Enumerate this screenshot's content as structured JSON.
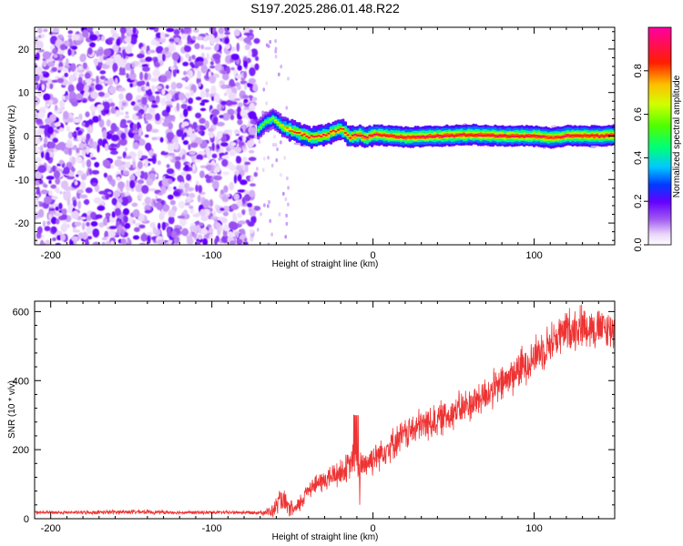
{
  "title": "S197.2025.286.01.48.R22",
  "chart_data": [
    {
      "type": "heatmap",
      "xlabel": "Height of straight line (km)",
      "ylabel": "Frequency (Hz)",
      "xlim": [
        -210,
        150
      ],
      "ylim": [
        -25,
        25
      ],
      "xticks": [
        -200,
        -100,
        0,
        100
      ],
      "yticks": [
        -20,
        -10,
        0,
        10,
        20
      ],
      "colorbar": {
        "label": "Normalized spectral amplitude",
        "range": [
          0,
          1
        ],
        "ticks": [
          "0.0",
          "0.2",
          "0.4",
          "0.6",
          "0.8"
        ],
        "tick_values": [
          0.0,
          0.2,
          0.4,
          0.6,
          0.8
        ]
      },
      "noise_region": {
        "x_from": -210,
        "x_to": -72,
        "max_amplitude": 0.2
      },
      "ridge": {
        "x": [
          -72,
          -68,
          -63,
          -58,
          -53,
          -48,
          -40,
          -30,
          -24,
          -20,
          -15,
          -10,
          -5,
          0,
          10,
          20,
          40,
          60,
          80,
          100,
          110,
          120,
          140,
          150
        ],
        "freq": [
          1.5,
          3,
          4,
          2.5,
          1.5,
          0.8,
          -0.3,
          0.2,
          1.2,
          1.5,
          -0.3,
          0.3,
          -0.3,
          0.4,
          0,
          -0.3,
          0,
          0.3,
          0,
          0,
          -0.4,
          0.1,
          0,
          0.2
        ],
        "amplitude": [
          0.6,
          0.55,
          0.6,
          0.7,
          0.8,
          0.85,
          0.9,
          0.9,
          0.85,
          0.85,
          0.9,
          0.95,
          0.95,
          0.95,
          0.97,
          0.97,
          0.98,
          0.98,
          0.98,
          0.98,
          0.95,
          0.97,
          0.98,
          0.98
        ]
      }
    },
    {
      "type": "line",
      "xlabel": "Height of straight line (km)",
      "ylabel": "SNR (10 * v/v)",
      "xlim": [
        -210,
        150
      ],
      "ylim": [
        0,
        630
      ],
      "xticks": [
        -200,
        -100,
        0,
        100
      ],
      "yticks": [
        0,
        200,
        400,
        600
      ],
      "color": "#ee3333",
      "series": [
        {
          "name": "SNR",
          "x": [
            -210,
            -180,
            -150,
            -120,
            -90,
            -70,
            -62,
            -58,
            -55,
            -52,
            -48,
            -45,
            -40,
            -35,
            -30,
            -25,
            -20,
            -15,
            -12,
            -10,
            -5,
            0,
            10,
            20,
            30,
            40,
            50,
            60,
            70,
            80,
            90,
            100,
            110,
            120,
            130,
            140,
            150
          ],
          "y": [
            18,
            18,
            20,
            18,
            18,
            18,
            20,
            55,
            45,
            30,
            25,
            45,
            90,
            100,
            110,
            125,
            135,
            150,
            175,
            155,
            160,
            175,
            210,
            245,
            270,
            285,
            310,
            330,
            360,
            390,
            430,
            470,
            510,
            545,
            560,
            550,
            545
          ],
          "noise": [
            6,
            6,
            8,
            6,
            6,
            6,
            25,
            40,
            40,
            30,
            25,
            35,
            35,
            35,
            40,
            45,
            50,
            50,
            55,
            60,
            55,
            55,
            55,
            55,
            60,
            60,
            60,
            60,
            65,
            65,
            70,
            70,
            70,
            75,
            75,
            70,
            70
          ]
        }
      ]
    }
  ]
}
